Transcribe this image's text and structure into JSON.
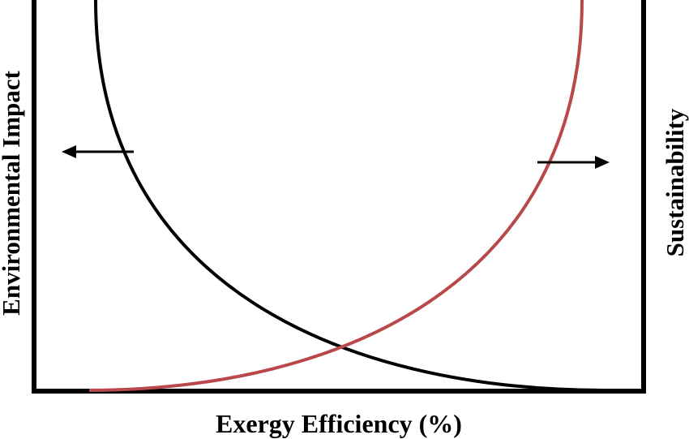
{
  "x_axis_label": "Exergy Efficiency (%)",
  "left_axis_label": "Environmental Impact",
  "right_axis_label": "Sustainability",
  "colors": {
    "environmental_impact_curve": "#000000",
    "sustainability_curve": "#b9484a",
    "axes": "#000000",
    "background": "#ffffff"
  },
  "diagram": {
    "environmental_impact_curve": "decreasing; paired with left-pointing arrow toward left axis",
    "sustainability_curve": "increasing; paired with right-pointing arrow toward right axis"
  }
}
